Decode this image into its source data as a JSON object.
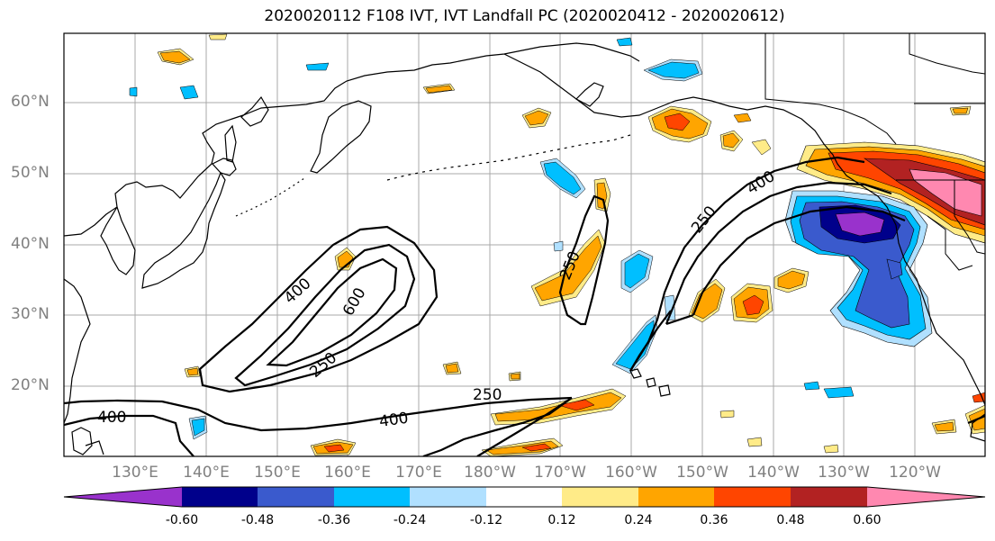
{
  "title": "2020020112 F108 IVT, IVT Landfall PC (2020020412 - 2020020612)",
  "lat_labels": [
    "60°N",
    "50°N",
    "40°N",
    "30°N",
    "20°N"
  ],
  "lon_labels": [
    "130°E",
    "140°E",
    "150°E",
    "160°E",
    "170°E",
    "180°W",
    "170°W",
    "160°W",
    "150°W",
    "140°W",
    "130°W",
    "120°W"
  ],
  "contour_labels": [
    "400",
    "600",
    "250",
    "250",
    "400",
    "250",
    "400",
    "250",
    "400"
  ],
  "colorbar": {
    "tick_labels": [
      "-0.60",
      "-0.48",
      "-0.36",
      "-0.24",
      "-0.12",
      "0.12",
      "0.24",
      "0.36",
      "0.48",
      "0.60"
    ],
    "colors": [
      "#9932cc",
      "#00008b",
      "#3a5acd",
      "#00bfff",
      "#b0e0ff",
      "#ffffff",
      "#ffeb88",
      "#ffa500",
      "#ff4500",
      "#b22222",
      "#ff88b0"
    ]
  },
  "colors": {
    "grid": "#a9a9a9",
    "coast": "#000000",
    "contour": "#000000",
    "tick_label": "#808080"
  }
}
